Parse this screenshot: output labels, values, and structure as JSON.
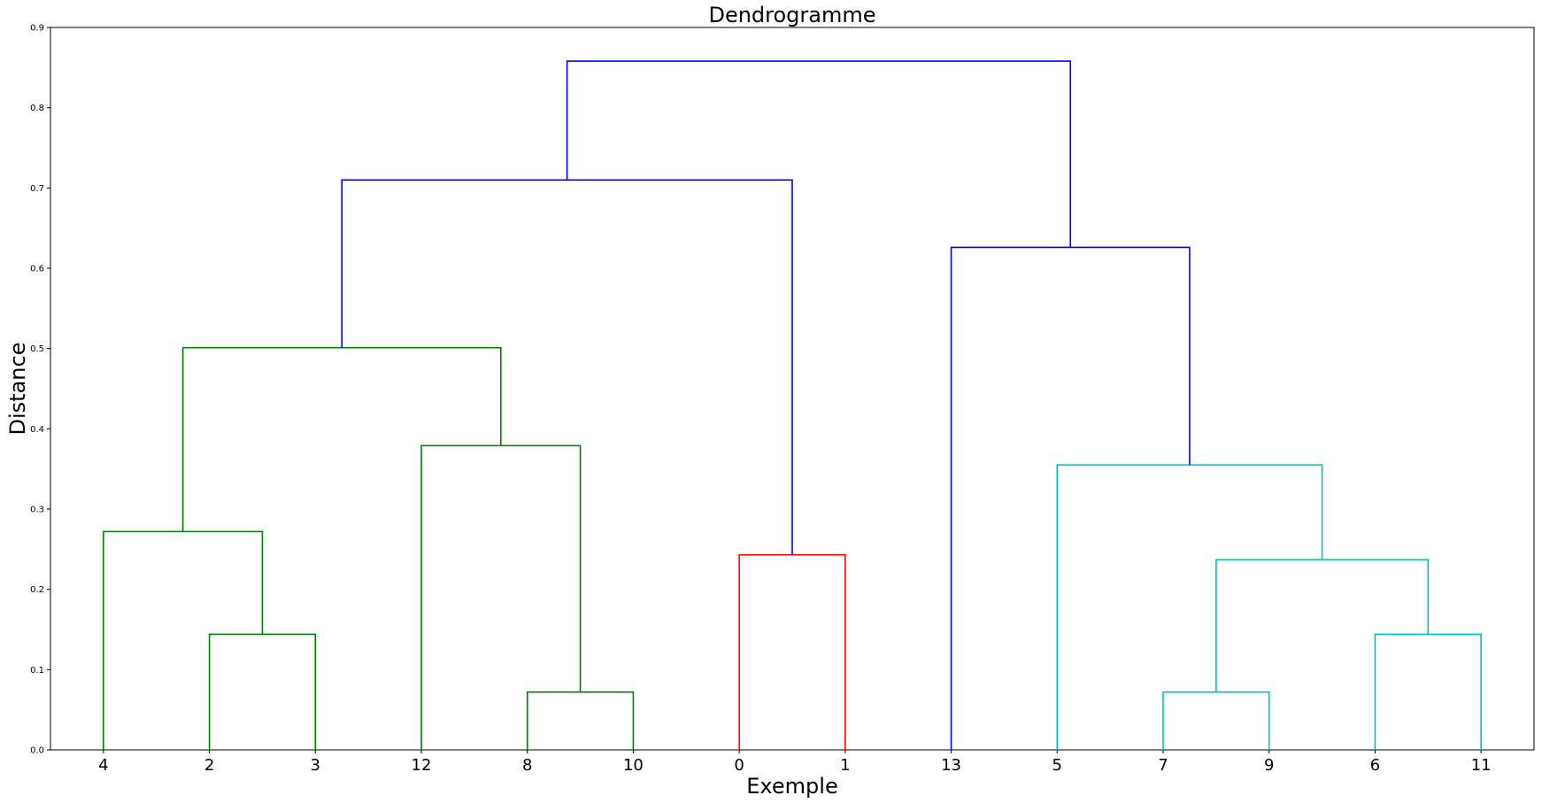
{
  "chart_data": {
    "type": "dendrogram",
    "title": "Dendrogramme",
    "xlabel": "Exemple",
    "ylabel": "Distance",
    "ylim": [
      0,
      0.9
    ],
    "yticks": [
      "0.0",
      "0.1",
      "0.2",
      "0.3",
      "0.4",
      "0.5",
      "0.6",
      "0.7",
      "0.8",
      "0.9"
    ],
    "leaves": [
      "4",
      "2",
      "3",
      "12",
      "8",
      "10",
      "0",
      "1",
      "13",
      "5",
      "7",
      "9",
      "6",
      "11"
    ],
    "colors": {
      "green": "#008000",
      "red": "#ff0000",
      "cyan": "#00bfbf",
      "blue": "#0000ff"
    },
    "links": [
      {
        "left": 1,
        "right": 2,
        "height": 0.144,
        "color": "green"
      },
      {
        "left": 0,
        "right": 1.5,
        "height": 0.272,
        "color": "green"
      },
      {
        "left": 4,
        "right": 5,
        "height": 0.072,
        "color": "green"
      },
      {
        "left": 3,
        "right": 4.5,
        "height": 0.379,
        "color": "green"
      },
      {
        "left": 0.75,
        "right": 3.75,
        "height": 0.501,
        "color": "green"
      },
      {
        "left": 6,
        "right": 7,
        "height": 0.243,
        "color": "red"
      },
      {
        "left": 10,
        "right": 11,
        "height": 0.072,
        "color": "cyan"
      },
      {
        "left": 12,
        "right": 13,
        "height": 0.144,
        "color": "cyan"
      },
      {
        "left": 10.5,
        "right": 12.5,
        "height": 0.237,
        "color": "cyan"
      },
      {
        "left": 9,
        "right": 11.5,
        "height": 0.355,
        "color": "cyan"
      },
      {
        "left": 8,
        "right": 10.25,
        "height": 0.626,
        "color": "blue"
      },
      {
        "left": 2.25,
        "right": 6.5,
        "height": 0.71,
        "color": "blue",
        "leftBottom": 0.501,
        "rightBottom": 0.243
      },
      {
        "left": 4.375,
        "right": 9.125,
        "height": 0.858,
        "color": "blue",
        "leftBottom": 0.71,
        "rightBottom": 0.626
      }
    ]
  }
}
